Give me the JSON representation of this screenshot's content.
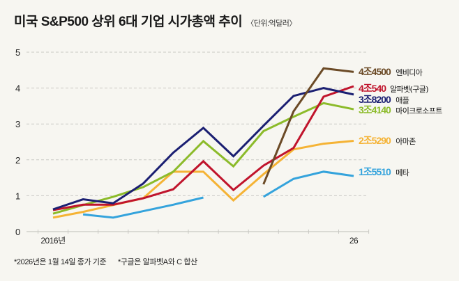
{
  "title": "미국 S&P500 상위 6대 기업 시가총액 추이",
  "unit": "〈단위:억달러〉",
  "footnotes": [
    "*2026년은 1월 14일 종가 기준",
    "*구글은 알파벳A와 C 합산"
  ],
  "chart_data": {
    "type": "line",
    "title": "미국 S&P500 상위 6대 기업 시가총액 추이",
    "subtitle": "〈단위:억달러〉",
    "xlabel": "",
    "ylabel": "",
    "x": [
      2016,
      2017,
      2018,
      2019,
      2020,
      2021,
      2022,
      2023,
      2024,
      2025,
      2026
    ],
    "x_tick_labels": [
      "2016년",
      "",
      "",
      "",
      "",
      "",
      "",
      "",
      "",
      "",
      "26"
    ],
    "y_ticks": [
      0,
      1,
      2,
      3,
      4,
      5
    ],
    "ylim": [
      0,
      5
    ],
    "grid": true,
    "series": [
      {
        "name": "엔비디아",
        "end_label": "4조4500",
        "color": "#6b4a26",
        "values": [
          null,
          null,
          null,
          null,
          null,
          null,
          null,
          1.32,
          3.35,
          4.55,
          4.45
        ]
      },
      {
        "name": "알파벳(구글)",
        "end_label": "4조540",
        "color": "#c0142c",
        "values": [
          0.6,
          0.75,
          0.75,
          0.93,
          1.18,
          1.96,
          1.16,
          1.84,
          2.33,
          3.76,
          4.05
        ]
      },
      {
        "name": "애플",
        "end_label": "3조8200",
        "color": "#1b1f72",
        "values": [
          0.62,
          0.9,
          0.79,
          1.34,
          2.2,
          2.89,
          2.1,
          2.95,
          3.78,
          4.0,
          3.82
        ]
      },
      {
        "name": "마이크로소프트",
        "end_label": "3조4140",
        "color": "#8cbb2a",
        "values": [
          0.5,
          0.74,
          0.97,
          1.24,
          1.67,
          2.52,
          1.82,
          2.8,
          3.2,
          3.58,
          3.41
        ]
      },
      {
        "name": "아마존",
        "end_label": "2조5290",
        "color": "#f5b335",
        "values": [
          0.39,
          0.55,
          0.74,
          0.93,
          1.67,
          1.67,
          0.87,
          1.6,
          2.29,
          2.45,
          2.53
        ]
      },
      {
        "name": "메타",
        "end_label": "1조5510",
        "color": "#34a3dc",
        "values": [
          null,
          0.48,
          0.39,
          0.57,
          0.75,
          0.95,
          null,
          0.97,
          1.47,
          1.67,
          1.55
        ]
      }
    ]
  }
}
